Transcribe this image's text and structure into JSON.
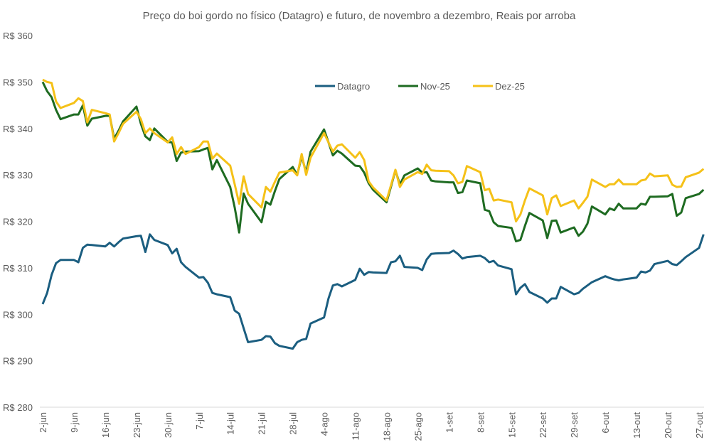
{
  "chart_data": {
    "type": "line",
    "title": "Preço do boi gordo no físico (Datagro) e futuro, de novembro a dezembro, Reais por arroba",
    "xlabel": "",
    "ylabel": "",
    "ylim": [
      280,
      360
    ],
    "y_ticks": [
      280,
      290,
      300,
      310,
      320,
      330,
      340,
      350,
      360
    ],
    "y_tick_prefix": "R$ ",
    "x_tick_labels": [
      "2-jun",
      "9-jun",
      "16-jun",
      "23-jun",
      "30-jun",
      "7-jul",
      "14-jul",
      "21-jul",
      "28-jul",
      "4-ago",
      "11-ago",
      "18-ago",
      "25-ago",
      "1-set",
      "8-set",
      "15-set",
      "22-set",
      "29-set",
      "6-out",
      "13-out",
      "20-out",
      "27-out"
    ],
    "grid": false,
    "legend_position": "top-center",
    "x": [
      "2-jun",
      "3-jun",
      "4-jun",
      "5-jun",
      "6-jun",
      "9-jun",
      "10-jun",
      "11-jun",
      "12-jun",
      "13-jun",
      "16-jun",
      "17-jun",
      "18-jun",
      "19-jun",
      "20-jun",
      "23-jun",
      "24-jun",
      "25-jun",
      "26-jun",
      "27-jun",
      "30-jun",
      "1-jul",
      "2-jul",
      "3-jul",
      "4-jul",
      "7-jul",
      "8-jul",
      "9-jul",
      "10-jul",
      "11-jul",
      "14-jul",
      "15-jul",
      "16-jul",
      "17-jul",
      "18-jul",
      "21-jul",
      "22-jul",
      "23-jul",
      "24-jul",
      "25-jul",
      "28-jul",
      "29-jul",
      "30-jul",
      "31-jul",
      "1-ago",
      "4-ago",
      "5-ago",
      "6-ago",
      "7-ago",
      "8-ago",
      "11-ago",
      "12-ago",
      "13-ago",
      "14-ago",
      "15-ago",
      "18-ago",
      "19-ago",
      "20-ago",
      "21-ago",
      "22-ago",
      "25-ago",
      "26-ago",
      "27-ago",
      "28-ago",
      "29-ago",
      "1-set",
      "2-set",
      "3-set",
      "4-set",
      "5-set",
      "8-set",
      "9-set",
      "10-set",
      "11-set",
      "12-set",
      "15-set",
      "16-set",
      "17-set",
      "18-set",
      "19-set",
      "22-set",
      "23-set",
      "24-set",
      "25-set",
      "26-set",
      "29-set",
      "30-set",
      "1-out",
      "2-out",
      "3-out",
      "6-out",
      "7-out",
      "8-out",
      "9-out",
      "10-out",
      "13-out",
      "14-out",
      "15-out",
      "16-out",
      "17-out",
      "20-out",
      "21-out",
      "22-out",
      "23-out",
      "24-out",
      "27-out",
      "28-out"
    ],
    "series": [
      {
        "name": "Datagro",
        "color": "#1b5e80",
        "values": [
          302.2,
          304.6,
          308.5,
          311.0,
          311.7,
          311.7,
          311.2,
          314.3,
          315.0,
          314.9,
          314.6,
          315.4,
          314.6,
          315.5,
          316.3,
          316.8,
          316.9,
          313.4,
          317.2,
          316.0,
          314.9,
          313.1,
          314.1,
          311.2,
          310.2,
          307.9,
          308.0,
          306.8,
          304.6,
          304.3,
          303.7,
          300.8,
          300.1,
          297.0,
          294.0,
          294.5,
          295.3,
          295.2,
          293.8,
          293.2,
          292.6,
          294.0,
          294.5,
          294.7,
          298.0,
          299.3,
          303.4,
          306.2,
          306.5,
          306.0,
          307.4,
          309.8,
          308.5,
          309.1,
          309.0,
          308.9,
          311.2,
          311.4,
          312.6,
          310.2,
          310.0,
          309.5,
          311.8,
          313.0,
          313.1,
          313.2,
          313.7,
          313.0,
          312.0,
          312.3,
          312.6,
          312.1,
          311.2,
          311.5,
          310.5,
          309.7,
          304.3,
          305.7,
          306.5,
          304.8,
          303.4,
          302.5,
          303.4,
          303.4,
          305.9,
          304.3,
          304.6,
          305.5,
          306.2,
          306.9,
          308.2,
          307.8,
          307.5,
          307.3,
          307.5,
          307.9,
          309.2,
          309.0,
          309.4,
          310.8,
          311.5,
          310.8,
          310.6,
          311.4,
          312.3,
          314.3,
          317.2
        ]
      },
      {
        "name": "Nov-25",
        "color": "#1e6b21",
        "values": [
          350.0,
          348.0,
          346.7,
          344.0,
          342.0,
          343.0,
          343.0,
          345.0,
          340.6,
          342.1,
          342.7,
          342.8,
          337.8,
          339.5,
          341.5,
          344.7,
          341.0,
          338.3,
          337.5,
          340.0,
          337.1,
          337.0,
          333.0,
          334.8,
          335.0,
          335.1,
          335.5,
          335.8,
          331.2,
          333.2,
          327.4,
          323.0,
          317.6,
          326.0,
          323.8,
          319.8,
          324.2,
          323.6,
          326.5,
          329.1,
          331.7,
          330.0,
          334.0,
          330.5,
          335.0,
          339.8,
          337.0,
          334.2,
          335.2,
          334.6,
          332.0,
          331.9,
          330.5,
          328.2,
          326.8,
          324.1,
          327.5,
          331.0,
          327.9,
          329.9,
          331.4,
          330.5,
          330.6,
          328.8,
          328.6,
          328.4,
          328.4,
          326.1,
          326.3,
          328.8,
          328.2,
          322.5,
          322.2,
          319.8,
          319.0,
          318.6,
          315.7,
          316.0,
          319.0,
          321.8,
          320.2,
          316.4,
          320.1,
          320.2,
          317.6,
          318.7,
          316.9,
          317.8,
          319.5,
          323.2,
          321.5,
          322.8,
          322.4,
          323.8,
          322.8,
          322.8,
          323.8,
          323.6,
          325.3,
          325.3,
          325.4,
          325.9,
          321.2,
          321.9,
          325.0,
          325.9,
          326.8
        ]
      },
      {
        "name": "Dez-25",
        "color": "#f5c118",
        "values": [
          350.5,
          350.0,
          349.8,
          345.8,
          344.4,
          345.5,
          346.5,
          345.9,
          341.3,
          344.0,
          343.3,
          343.0,
          337.2,
          339.0,
          341.0,
          343.6,
          342.0,
          339.0,
          340.0,
          339.0,
          337.0,
          338.1,
          334.5,
          336.0,
          334.5,
          336.0,
          337.2,
          337.2,
          333.5,
          334.6,
          332.0,
          328.0,
          323.8,
          329.7,
          325.9,
          323.0,
          327.4,
          326.4,
          328.5,
          330.5,
          331.0,
          329.9,
          334.5,
          330.0,
          333.7,
          339.0,
          337.0,
          335.0,
          336.3,
          336.6,
          333.7,
          334.9,
          333.2,
          328.6,
          327.3,
          324.5,
          327.8,
          331.1,
          327.4,
          329.0,
          330.6,
          330.2,
          332.2,
          331.0,
          330.9,
          330.8,
          329.9,
          328.2,
          328.5,
          331.9,
          330.6,
          326.7,
          327.0,
          324.5,
          324.7,
          324.1,
          320.0,
          321.5,
          324.5,
          327.1,
          325.6,
          321.5,
          325.0,
          325.6,
          323.3,
          324.5,
          322.8,
          324.0,
          325.3,
          329.0,
          327.4,
          328.0,
          328.0,
          329.0,
          328.0,
          328.0,
          328.8,
          329.0,
          330.3,
          329.7,
          329.9,
          327.9,
          327.4,
          327.5,
          329.5,
          330.5,
          331.3
        ]
      }
    ]
  }
}
